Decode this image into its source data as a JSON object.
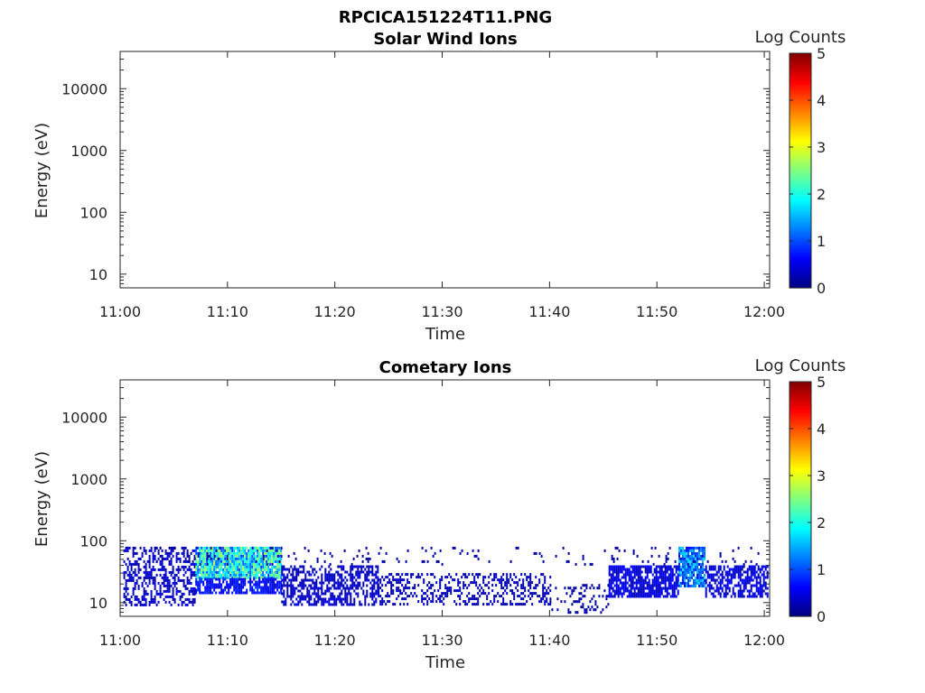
{
  "figure_title": "RPCICA151224T11.PNG",
  "chart_data": [
    {
      "type": "heatmap",
      "title": "Solar Wind Ions",
      "xlabel": "Time",
      "ylabel": "Energy (eV)",
      "x_ticks": [
        "11:00",
        "11:10",
        "11:20",
        "11:30",
        "11:40",
        "11:50",
        "12:00"
      ],
      "x_range_minutes": [
        0,
        60.5
      ],
      "y_scale": "log",
      "y_ticks": [
        "10",
        "100",
        "1000",
        "10000"
      ],
      "y_range": [
        6,
        40000
      ],
      "colorbar": {
        "label": "Log Counts",
        "ticks": [
          "0",
          "1",
          "2",
          "3",
          "4",
          "5"
        ],
        "range": [
          0,
          5
        ],
        "colormap": "jet"
      },
      "bands": []
    },
    {
      "type": "heatmap",
      "title": "Cometary Ions",
      "xlabel": "Time",
      "ylabel": "Energy (eV)",
      "x_ticks": [
        "11:00",
        "11:10",
        "11:20",
        "11:30",
        "11:40",
        "11:50",
        "12:00"
      ],
      "x_range_minutes": [
        0,
        60.5
      ],
      "y_scale": "log",
      "y_ticks": [
        "10",
        "100",
        "1000",
        "10000"
      ],
      "y_range": [
        6,
        40000
      ],
      "colorbar": {
        "label": "Log Counts",
        "ticks": [
          "0",
          "1",
          "2",
          "3",
          "4",
          "5"
        ],
        "range": [
          0,
          5
        ],
        "colormap": "jet"
      },
      "bands": [
        {
          "t0": 0.3,
          "t1": 7.0,
          "e_low": 9,
          "e_high": 80,
          "level": 0.35,
          "density": 0.45
        },
        {
          "t0": 7.0,
          "t1": 15.0,
          "e_low": 25,
          "e_high": 80,
          "level": 1.8,
          "density": 0.95
        },
        {
          "t0": 7.0,
          "t1": 15.0,
          "e_low": 14,
          "e_high": 25,
          "level": 0.6,
          "density": 0.8
        },
        {
          "t0": 15.0,
          "t1": 24.0,
          "e_low": 9,
          "e_high": 40,
          "level": 0.35,
          "density": 0.55
        },
        {
          "t0": 24.0,
          "t1": 40.0,
          "e_low": 9,
          "e_high": 30,
          "level": 0.25,
          "density": 0.35
        },
        {
          "t0": 40.0,
          "t1": 45.5,
          "e_low": 7,
          "e_high": 20,
          "level": 0.15,
          "density": 0.2
        },
        {
          "t0": 45.5,
          "t1": 52.0,
          "e_low": 13,
          "e_high": 40,
          "level": 0.45,
          "density": 0.75
        },
        {
          "t0": 52.0,
          "t1": 54.5,
          "e_low": 18,
          "e_high": 80,
          "level": 1.2,
          "density": 0.85
        },
        {
          "t0": 54.5,
          "t1": 60.3,
          "e_low": 12,
          "e_high": 40,
          "level": 0.45,
          "density": 0.65
        },
        {
          "t0": 0.3,
          "t1": 60.3,
          "e_low": 40,
          "e_high": 80,
          "level": 0.2,
          "density": 0.06
        }
      ]
    }
  ]
}
